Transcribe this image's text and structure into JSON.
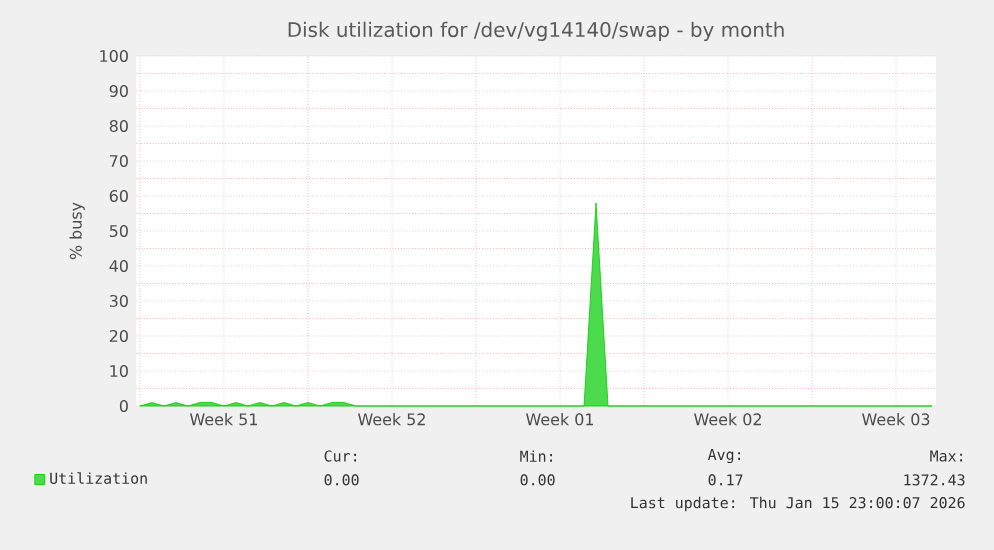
{
  "chart_data": {
    "type": "area",
    "title": "Disk utilization for /dev/vg14140/swap - by month",
    "ylabel": "% busy",
    "categories": [
      null,
      null,
      null,
      null,
      null,
      null,
      null,
      "Week 51",
      null,
      null,
      null,
      null,
      null,
      null,
      null,
      null,
      null,
      null,
      null,
      null,
      null,
      "Week 52",
      null,
      null,
      null,
      null,
      null,
      null,
      null,
      null,
      null,
      null,
      null,
      null,
      null,
      "Week 01",
      null,
      null,
      null,
      null,
      null,
      null,
      null,
      null,
      null,
      null,
      null,
      null,
      null,
      "Week 02",
      null,
      null,
      null,
      null,
      null,
      null,
      null,
      null,
      null,
      null,
      null,
      null,
      null,
      "Week 03",
      null,
      null,
      null
    ],
    "series": [
      {
        "name": "Utilization",
        "color": "#00cc00",
        "values": [
          0,
          1,
          0,
          1,
          0,
          1,
          1,
          0,
          1,
          0,
          1,
          0,
          1,
          0,
          1,
          0,
          1,
          1,
          0,
          0,
          0,
          0,
          0,
          0,
          0,
          0,
          0,
          0,
          0,
          0,
          0,
          0,
          0,
          0,
          0,
          0,
          0,
          0,
          58,
          0,
          0,
          0,
          0,
          0,
          0,
          0,
          0,
          0,
          0,
          0,
          0,
          0,
          0,
          0,
          0,
          0,
          0,
          0,
          0,
          0,
          0,
          0,
          0,
          0,
          0,
          0,
          0
        ]
      }
    ],
    "ylim": [
      0,
      100
    ],
    "yticks": [
      0,
      10,
      20,
      30,
      40,
      50,
      60,
      70,
      80,
      90,
      100
    ],
    "grid": true,
    "legend": "bottom left",
    "annotations": [
      "Cur:",
      "Min:",
      "Avg:",
      "Max:",
      "0.00",
      "0.00",
      "0.17",
      "1372.43",
      "Last update: Thu Jan 15 23:00:07 2026"
    ]
  }
}
